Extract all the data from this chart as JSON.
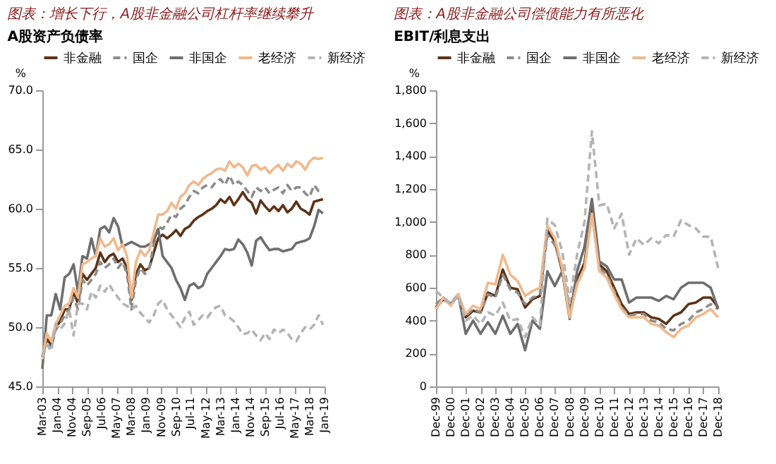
{
  "chart_data": [
    {
      "type": "line",
      "title": "图表：增长下行，A股非金融公司杠杆率继续攀升",
      "subtitle": "A股资产负债率",
      "ylabel": "%",
      "legend": "top",
      "grid": false,
      "x": [
        "2003-03",
        "2003-06",
        "2003-09",
        "2003-12",
        "2004-03",
        "2004-06",
        "2004-09",
        "2004-12",
        "2005-03",
        "2005-06",
        "2005-09",
        "2005-12",
        "2006-03",
        "2006-06",
        "2006-09",
        "2006-12",
        "2007-03",
        "2007-06",
        "2007-09",
        "2007-12",
        "2008-03",
        "2008-06",
        "2008-09",
        "2008-12",
        "2009-03",
        "2009-06",
        "2009-09",
        "2009-12",
        "2010-03",
        "2010-06",
        "2010-09",
        "2010-12",
        "2011-03",
        "2011-06",
        "2011-09",
        "2011-12",
        "2012-03",
        "2012-06",
        "2012-09",
        "2012-12",
        "2013-03",
        "2013-06",
        "2013-09",
        "2013-12",
        "2014-03",
        "2014-06",
        "2014-09",
        "2014-12",
        "2015-03",
        "2015-06",
        "2015-09",
        "2015-12",
        "2016-03",
        "2016-06",
        "2016-09",
        "2016-12",
        "2017-03",
        "2017-06",
        "2017-09",
        "2017-12",
        "2018-03",
        "2018-06",
        "2018-09",
        "2018-12"
      ],
      "xlim": [
        "2003-03",
        "2019-01"
      ],
      "xticks": [
        {
          "value": "2003-03",
          "label": "Mar-03"
        },
        {
          "value": "2004-01",
          "label": "Jan-04"
        },
        {
          "value": "2004-11",
          "label": "Nov-04"
        },
        {
          "value": "2005-09",
          "label": "Sep-05"
        },
        {
          "value": "2006-07",
          "label": "Jul-06"
        },
        {
          "value": "2007-05",
          "label": "May-07"
        },
        {
          "value": "2008-03",
          "label": "Mar-08"
        },
        {
          "value": "2009-01",
          "label": "Jan-09"
        },
        {
          "value": "2009-11",
          "label": "Nov-09"
        },
        {
          "value": "2010-09",
          "label": "Sep-10"
        },
        {
          "value": "2011-07",
          "label": "Jul-11"
        },
        {
          "value": "2012-05",
          "label": "May-12"
        },
        {
          "value": "2013-03",
          "label": "Mar-13"
        },
        {
          "value": "2014-01",
          "label": "Jan-14"
        },
        {
          "value": "2014-11",
          "label": "Nov-14"
        },
        {
          "value": "2015-09",
          "label": "Sep-15"
        },
        {
          "value": "2016-07",
          "label": "Jul-16"
        },
        {
          "value": "2017-05",
          "label": "May-17"
        },
        {
          "value": "2018-03",
          "label": "Mar-18"
        },
        {
          "value": "2019-01",
          "label": "Jan-19"
        }
      ],
      "ylim": [
        45,
        70
      ],
      "yticks": [
        {
          "value": 45,
          "label": "45.0"
        },
        {
          "value": 50,
          "label": "50.0"
        },
        {
          "value": 55,
          "label": "55.0"
        },
        {
          "value": 60,
          "label": "60.0"
        },
        {
          "value": 65,
          "label": "65.0"
        },
        {
          "value": 70,
          "label": "70.0"
        }
      ],
      "series": [
        {
          "name": "非金融",
          "color": "#5c3317",
          "line_style": "solid",
          "values": [
            47.5,
            49.0,
            48.5,
            50.0,
            50.5,
            51.5,
            51.5,
            53.0,
            52.0,
            54.5,
            54.0,
            54.5,
            55.0,
            56.3,
            55.5,
            56.0,
            56.2,
            55.5,
            55.8,
            55.0,
            52.3,
            54.5,
            55.3,
            54.8,
            55.0,
            56.3,
            57.5,
            57.8,
            57.5,
            57.8,
            58.2,
            57.7,
            58.3,
            58.5,
            59.0,
            59.3,
            59.5,
            59.8,
            60.0,
            60.3,
            60.8,
            60.5,
            61.0,
            60.3,
            60.8,
            61.4,
            60.8,
            60.5,
            59.6,
            60.7,
            60.2,
            59.8,
            60.2,
            59.8,
            60.3,
            59.7,
            60.0,
            60.6,
            60.0,
            59.8,
            59.5,
            60.6,
            60.7,
            60.8
          ]
        },
        {
          "name": "国企",
          "color": "#8c8c8c",
          "line_style": "dashed",
          "values": [
            47.5,
            48.5,
            48.3,
            49.8,
            50.3,
            51.0,
            51.5,
            52.5,
            51.5,
            54.0,
            53.5,
            54.0,
            54.5,
            55.5,
            55.0,
            55.3,
            55.8,
            55.0,
            55.5,
            54.5,
            51.5,
            54.0,
            55.0,
            54.5,
            55.0,
            57.0,
            58.5,
            58.3,
            58.8,
            59.5,
            59.3,
            60.0,
            60.3,
            61.0,
            61.5,
            61.3,
            61.8,
            62.0,
            61.8,
            62.3,
            62.5,
            62.0,
            62.8,
            62.0,
            62.3,
            62.0,
            61.5,
            61.0,
            61.8,
            61.5,
            61.8,
            61.3,
            61.6,
            61.8,
            61.3,
            62.0,
            61.5,
            61.8,
            61.8,
            61.3,
            61.0,
            62.0,
            61.5,
            61.4
          ]
        },
        {
          "name": "非国企",
          "color": "#6e6e6e",
          "line_style": "solid",
          "values": [
            46.5,
            51.0,
            51.0,
            52.8,
            51.5,
            54.2,
            54.5,
            55.3,
            53.0,
            56.0,
            55.8,
            57.5,
            56.0,
            58.3,
            58.5,
            58.0,
            59.2,
            58.5,
            56.8,
            57.0,
            57.2,
            57.0,
            56.8,
            56.8,
            57.0,
            57.3,
            58.3,
            56.0,
            55.5,
            55.0,
            54.0,
            53.3,
            52.3,
            53.5,
            53.7,
            53.3,
            53.5,
            54.5,
            55.0,
            55.5,
            56.0,
            56.6,
            56.5,
            56.6,
            57.4,
            57.0,
            56.3,
            55.2,
            57.3,
            57.6,
            57.0,
            56.5,
            56.6,
            56.6,
            56.4,
            56.5,
            56.6,
            57.1,
            57.2,
            57.3,
            57.5,
            58.5,
            59.9,
            59.6
          ]
        },
        {
          "name": "老经济",
          "color": "#f0b98c",
          "line_style": "solid",
          "values": [
            47.3,
            49.5,
            48.8,
            50.3,
            51.0,
            51.8,
            52.0,
            53.3,
            52.5,
            55.3,
            55.5,
            55.8,
            56.0,
            57.5,
            56.8,
            57.0,
            57.5,
            56.5,
            57.0,
            56.0,
            52.5,
            55.5,
            56.5,
            56.0,
            56.5,
            58.0,
            59.5,
            59.5,
            59.8,
            60.5,
            60.0,
            61.0,
            61.3,
            62.0,
            62.3,
            62.0,
            62.5,
            62.8,
            63.0,
            63.3,
            63.4,
            63.2,
            64.0,
            63.5,
            63.8,
            63.5,
            62.8,
            63.6,
            63.7,
            63.3,
            63.5,
            63.0,
            63.4,
            63.7,
            63.2,
            63.8,
            63.5,
            64.0,
            63.8,
            63.3,
            64.0,
            64.3,
            64.2,
            64.3
          ]
        },
        {
          "name": "新经济",
          "color": "#b4b4b4",
          "line_style": "dashed",
          "values": [
            47.5,
            48.5,
            48.0,
            50.3,
            49.8,
            50.3,
            51.5,
            49.3,
            52.0,
            52.0,
            51.5,
            53.0,
            52.5,
            53.5,
            53.0,
            53.6,
            53.0,
            52.5,
            52.0,
            51.8,
            51.5,
            51.8,
            51.2,
            50.8,
            50.4,
            51.0,
            52.0,
            52.3,
            51.5,
            51.0,
            50.5,
            50.0,
            50.8,
            51.3,
            50.2,
            50.6,
            51.0,
            50.8,
            51.3,
            51.7,
            51.8,
            51.0,
            50.8,
            50.5,
            50.0,
            49.4,
            49.5,
            49.8,
            49.3,
            48.9,
            49.5,
            49.0,
            49.8,
            49.5,
            49.8,
            49.5,
            49.0,
            48.8,
            49.5,
            50.0,
            49.8,
            50.2,
            51.0,
            50.2
          ]
        }
      ]
    },
    {
      "type": "line",
      "title": "图表：A股非金融公司偿债能力有所恶化",
      "subtitle": "EBIT/利息支出",
      "ylabel": "%",
      "legend": "top",
      "grid": false,
      "x": [
        "1999-12",
        "2000-06",
        "2000-12",
        "2001-06",
        "2001-12",
        "2002-06",
        "2002-12",
        "2003-06",
        "2003-12",
        "2004-06",
        "2004-12",
        "2005-06",
        "2005-12",
        "2006-06",
        "2006-12",
        "2007-06",
        "2007-12",
        "2008-06",
        "2008-12",
        "2009-06",
        "2009-12",
        "2010-06",
        "2010-12",
        "2011-06",
        "2011-12",
        "2012-06",
        "2012-12",
        "2013-06",
        "2013-12",
        "2014-06",
        "2014-12",
        "2015-06",
        "2015-12",
        "2016-06",
        "2016-12",
        "2017-06",
        "2017-12",
        "2018-06",
        "2018-12"
      ],
      "xlim": [
        "1999-12",
        "2018-12"
      ],
      "xticks": [
        {
          "value": "1999-12",
          "label": "Dec-99"
        },
        {
          "value": "2000-12",
          "label": "Dec-00"
        },
        {
          "value": "2001-12",
          "label": "Dec-01"
        },
        {
          "value": "2002-12",
          "label": "Dec-02"
        },
        {
          "value": "2003-12",
          "label": "Dec-03"
        },
        {
          "value": "2004-12",
          "label": "Dec-04"
        },
        {
          "value": "2005-12",
          "label": "Dec-05"
        },
        {
          "value": "2006-12",
          "label": "Dec-06"
        },
        {
          "value": "2007-12",
          "label": "Dec-07"
        },
        {
          "value": "2008-12",
          "label": "Dec-08"
        },
        {
          "value": "2009-12",
          "label": "Dec-09"
        },
        {
          "value": "2010-12",
          "label": "Dec-10"
        },
        {
          "value": "2011-12",
          "label": "Dec-11"
        },
        {
          "value": "2012-12",
          "label": "Dec-12"
        },
        {
          "value": "2013-12",
          "label": "Dec-13"
        },
        {
          "value": "2014-12",
          "label": "Dec-14"
        },
        {
          "value": "2015-12",
          "label": "Dec-15"
        },
        {
          "value": "2016-12",
          "label": "Dec-16"
        },
        {
          "value": "2017-12",
          "label": "Dec-17"
        },
        {
          "value": "2018-12",
          "label": "Dec-18"
        }
      ],
      "ylim": [
        0,
        1800
      ],
      "yticks": [
        0,
        {
          "value": 200,
          "label": "200"
        },
        {
          "value": 400,
          "label": "400"
        },
        {
          "value": 600,
          "label": "600"
        },
        {
          "value": 800,
          "label": "800"
        },
        {
          "value": 1000,
          "label": "1,000"
        },
        {
          "value": 1200,
          "label": "1,200"
        },
        {
          "value": 1400,
          "label": "1,400"
        },
        {
          "value": 1600,
          "label": "1,600"
        },
        {
          "value": 1800,
          "label": "1,800"
        }
      ],
      "series": [
        {
          "name": "非金融",
          "color": "#5c3317",
          "line_style": "solid",
          "values": [
            480,
            530,
            500,
            550,
            420,
            460,
            450,
            570,
            550,
            710,
            600,
            590,
            480,
            530,
            550,
            950,
            880,
            700,
            450,
            650,
            750,
            1080,
            740,
            700,
            600,
            500,
            440,
            450,
            450,
            420,
            410,
            380,
            430,
            450,
            500,
            510,
            540,
            540,
            480
          ]
        },
        {
          "name": "国企",
          "color": "#8c8c8c",
          "line_style": "dashed",
          "values": [
            500,
            540,
            500,
            560,
            430,
            470,
            450,
            560,
            540,
            680,
            590,
            570,
            500,
            540,
            560,
            920,
            860,
            720,
            470,
            620,
            720,
            1050,
            720,
            680,
            580,
            480,
            430,
            440,
            440,
            400,
            390,
            350,
            340,
            380,
            400,
            450,
            470,
            500,
            470
          ]
        },
        {
          "name": "非国企",
          "color": "#6e6e6e",
          "line_style": "solid",
          "values": [
            470,
            540,
            500,
            560,
            320,
            400,
            320,
            390,
            320,
            430,
            320,
            380,
            220,
            400,
            350,
            700,
            610,
            700,
            410,
            700,
            850,
            1140,
            760,
            730,
            650,
            650,
            510,
            540,
            540,
            540,
            520,
            550,
            530,
            600,
            630,
            630,
            630,
            600,
            470
          ]
        },
        {
          "name": "老经济",
          "color": "#f0b98c",
          "line_style": "solid",
          "values": [
            470,
            540,
            490,
            560,
            440,
            490,
            470,
            630,
            620,
            800,
            680,
            640,
            550,
            580,
            600,
            980,
            900,
            720,
            420,
            620,
            720,
            1050,
            700,
            660,
            560,
            470,
            420,
            420,
            420,
            380,
            370,
            330,
            300,
            350,
            370,
            420,
            440,
            470,
            420
          ]
        },
        {
          "name": "新经济",
          "color": "#b4b4b4",
          "line_style": "dashed",
          "values": [
            580,
            540,
            500,
            550,
            400,
            430,
            380,
            450,
            430,
            510,
            400,
            410,
            300,
            420,
            370,
            1020,
            980,
            820,
            520,
            800,
            1000,
            1550,
            1100,
            1110,
            960,
            1050,
            800,
            900,
            860,
            900,
            870,
            920,
            910,
            1010,
            980,
            960,
            910,
            910,
            720
          ]
        }
      ]
    }
  ]
}
